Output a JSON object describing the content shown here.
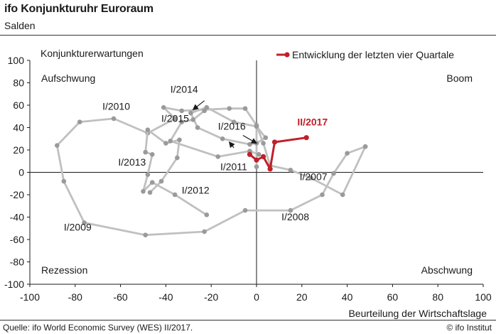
{
  "header": {
    "title": "ifo Konjunkturuhr Euroraum",
    "subtitle": "Salden"
  },
  "footer": {
    "source": "Quelle: ifo World Economic Survey (WES) II/2017.",
    "credit": "© ifo Institut"
  },
  "colors": {
    "history": "#c0c0c0",
    "recent": "#c0202a",
    "axis": "#1a1a1a",
    "text": "#1a1a1a"
  },
  "chart_data": {
    "type": "line",
    "title": "ifo Konjunkturuhr Euroraum",
    "subtitle": "Salden",
    "xlabel": "Beurteilung der Wirtschaftslage",
    "ylabel": "Konjunkturerwartungen",
    "xlim": [
      -100,
      100
    ],
    "ylim": [
      -100,
      100
    ],
    "xticks": [
      -100,
      -80,
      -60,
      -40,
      -20,
      0,
      20,
      40,
      60,
      80,
      100
    ],
    "yticks": [
      -100,
      -80,
      -60,
      -40,
      -20,
      0,
      20,
      40,
      60,
      80,
      100
    ],
    "grid": false,
    "legend": {
      "position": "top-right",
      "label": "Entwicklung der letzten vier Quartale"
    },
    "quadrants": {
      "top_left": "Aufschwung",
      "top_right": "Boom",
      "bottom_left": "Rezession",
      "bottom_right": "Abschwung"
    },
    "series": [
      {
        "name": "",
        "style": "history",
        "x": [
          48,
          40,
          34,
          29,
          15,
          -5,
          -23,
          -49,
          -76,
          -85,
          -88,
          -78,
          -63,
          -48,
          -36,
          -41,
          -33,
          -23,
          -12,
          -5,
          0,
          3,
          6,
          15,
          24,
          38,
          48
        ],
        "y": [
          23,
          17,
          -1,
          -20,
          -34,
          -34,
          -53,
          -56,
          -45,
          -8,
          24,
          45,
          48,
          35,
          48,
          58,
          55,
          56,
          57,
          57,
          42,
          26,
          6,
          2,
          -5,
          -20,
          23
        ]
      },
      {
        "name": "",
        "style": "history",
        "x": [
          0,
          0,
          -10,
          -22,
          -29,
          -26,
          -15,
          -3,
          0,
          4,
          0
        ],
        "y": [
          5,
          41,
          45,
          58,
          53,
          40,
          30,
          25,
          26,
          31,
          41
        ]
      },
      {
        "name": "",
        "style": "history",
        "x": [
          -22,
          -36,
          -46,
          -50,
          -48,
          -46,
          -49,
          -48,
          -40,
          -34,
          -35,
          -42,
          -47
        ],
        "y": [
          -38,
          -20,
          -9,
          -17,
          -2,
          16,
          18,
          38,
          26,
          29,
          13,
          -8,
          -18
        ]
      },
      {
        "name": "",
        "style": "history",
        "x": [
          -23,
          -28,
          -33,
          -38,
          -17,
          -3,
          1
        ],
        "y": [
          55,
          47,
          45,
          28,
          14,
          19,
          16
        ]
      },
      {
        "name": "Entwicklung der letzten vier Quartale",
        "style": "recent",
        "x": [
          -3,
          0,
          3,
          6,
          8,
          22
        ],
        "y": [
          16,
          11,
          14,
          3,
          27,
          31
        ]
      }
    ],
    "annotations": [
      {
        "text": "I/2014",
        "x": -38,
        "y": 71
      },
      {
        "text": "I/2010",
        "x": -68,
        "y": 56
      },
      {
        "text": "I/2015",
        "x": -42,
        "y": 45
      },
      {
        "text": "I/2016",
        "x": -17,
        "y": 38
      },
      {
        "text": "I/2013",
        "x": -61,
        "y": 6
      },
      {
        "text": "I/2011",
        "x": -16,
        "y": 2
      },
      {
        "text": "I/2012",
        "x": -33,
        "y": -19
      },
      {
        "text": "I/2009",
        "x": -85,
        "y": -52
      },
      {
        "text": "I/2007",
        "x": 19,
        "y": -7
      },
      {
        "text": "I/2008",
        "x": 11,
        "y": -43
      },
      {
        "text": "II/2017",
        "x": 18,
        "y": 42,
        "bold": true,
        "color": "#c0202a"
      }
    ]
  }
}
